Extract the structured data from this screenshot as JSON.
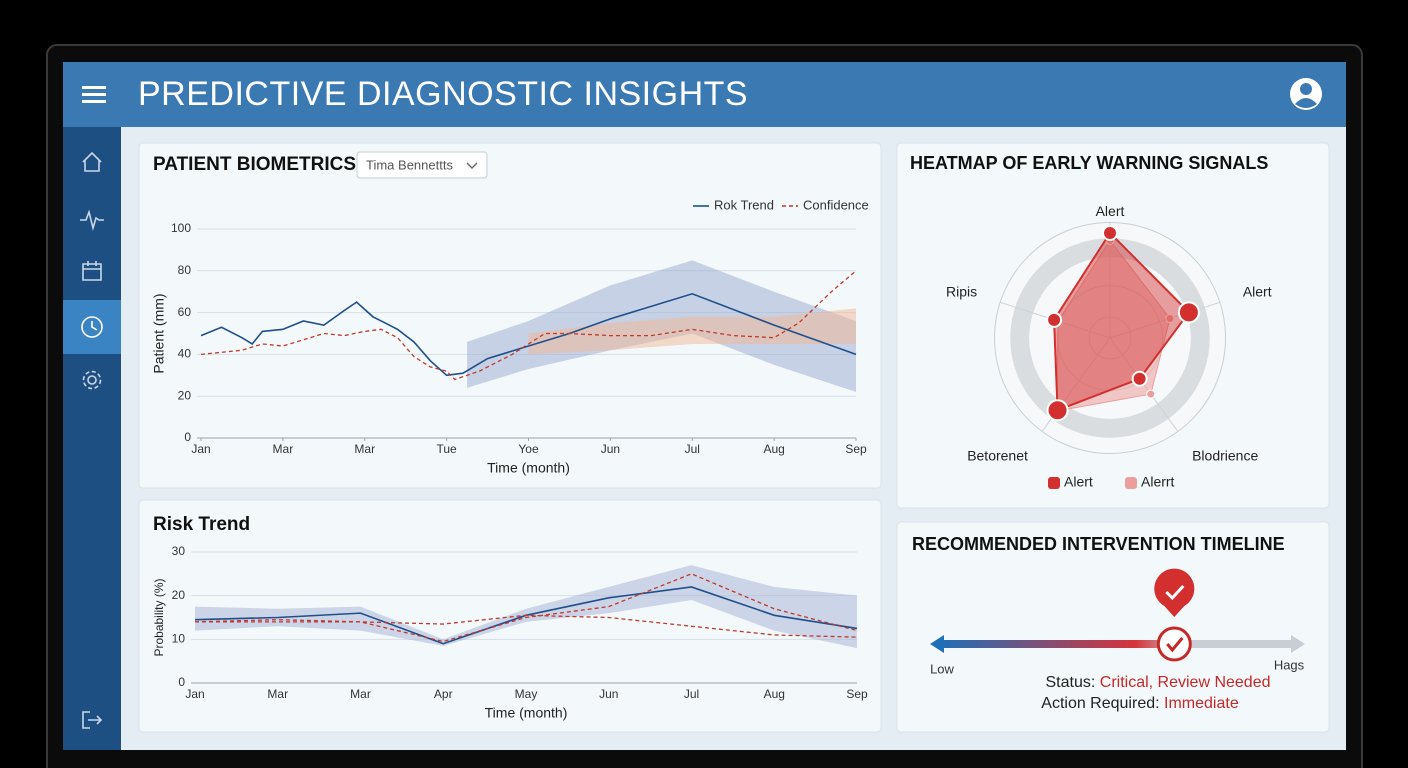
{
  "header": {
    "title": "PREDICTIVE DIAGNOSTIC INSIGHTS"
  },
  "patient_selector": "Tima Bennettts",
  "chart_data": [
    {
      "type": "line",
      "title": "PATIENT BIOMETRICS",
      "xlabel": "Time (month)",
      "ylabel": "Patient (mm)",
      "xlim": [
        0,
        8
      ],
      "xticks": [
        {
          "value": 0,
          "label": "Jan"
        },
        {
          "value": 1,
          "label": "Mar"
        },
        {
          "value": 2,
          "label": "Mar"
        },
        {
          "value": 3,
          "label": "Tue"
        },
        {
          "value": 4,
          "label": "Yoe"
        },
        {
          "value": 5,
          "label": "Jun"
        },
        {
          "value": 6,
          "label": "Jul"
        },
        {
          "value": 7,
          "label": "Aug"
        },
        {
          "value": 8,
          "label": "Sep"
        }
      ],
      "ylim": [
        0,
        100
      ],
      "yticks": [
        0,
        20,
        40,
        60,
        80,
        100
      ],
      "grid": true,
      "legend": "top-right",
      "series": [
        {
          "name": "Rok Trend",
          "color": "#1f4f8a",
          "style": "solid",
          "x": [
            0,
            0.25,
            0.5,
            0.625,
            0.75,
            1,
            1.25,
            1.5,
            1.75,
            1.9,
            2.1,
            2.4,
            2.6,
            2.8,
            3.0,
            3.2,
            3.5,
            4,
            4.5,
            5,
            6,
            7,
            8
          ],
          "values": [
            49,
            53,
            48,
            45,
            51,
            52,
            56,
            54,
            61,
            65,
            58,
            52,
            46,
            37,
            30,
            31,
            38,
            44,
            50,
            57,
            69,
            54,
            40
          ]
        },
        {
          "name": "Confidence",
          "color": "#c0392b",
          "style": "dashed",
          "x": [
            0,
            0.5,
            0.75,
            1,
            1.5,
            1.75,
            2,
            2.2,
            2.4,
            2.6,
            2.8,
            3.0,
            3.1,
            3.4,
            3.8,
            4.2,
            4.5,
            5,
            5.5,
            6,
            6.5,
            7,
            7.3,
            7.7,
            8
          ],
          "values": [
            40,
            42,
            45,
            44,
            50,
            49,
            51,
            52,
            48,
            39,
            34,
            32,
            28,
            32,
            40,
            50,
            50,
            49,
            49,
            52,
            49,
            48,
            55,
            70,
            80
          ]
        }
      ],
      "bands": [
        {
          "color": "#9aa9d0",
          "x": [
            3.25,
            4,
            5,
            6,
            7,
            8
          ],
          "lower": [
            24,
            33,
            42,
            50,
            35,
            22
          ],
          "upper": [
            46,
            56,
            73,
            85,
            70,
            56
          ]
        },
        {
          "color": "#f2b896",
          "x": [
            4,
            5,
            6,
            7,
            8
          ],
          "lower": [
            40,
            42,
            45,
            45,
            45
          ],
          "upper": [
            50,
            55,
            58,
            58,
            62
          ]
        }
      ]
    },
    {
      "type": "line",
      "title": "Risk Trend",
      "xlabel": "Time (month)",
      "ylabel": "Probability (%)",
      "categories": [
        "Jan",
        "Mar",
        "Mar",
        "Apr",
        "May",
        "Jun",
        "Jul",
        "Aug",
        "Sep"
      ],
      "ylim": [
        0,
        30
      ],
      "yticks": [
        0,
        10,
        20,
        30
      ],
      "grid": true,
      "series": [
        {
          "color": "#1f4f8a",
          "style": "solid",
          "values": [
            14.5,
            15,
            16,
            9,
            15.5,
            19.5,
            22,
            15.5,
            12.5
          ]
        },
        {
          "color": "#c0392b",
          "style": "dashed",
          "values": [
            14,
            14.5,
            14,
            9.5,
            15,
            17.5,
            25,
            17,
            12
          ]
        },
        {
          "color": "#c0392b",
          "style": "dashed",
          "values": [
            14,
            14,
            14,
            13.5,
            15.5,
            15,
            13,
            11,
            10.5
          ]
        }
      ],
      "bands": [
        {
          "color": "#a6b2d6",
          "lower": [
            12,
            13,
            12,
            8.5,
            14,
            16,
            19,
            12,
            8
          ],
          "upper": [
            17.5,
            17,
            17.5,
            10,
            17,
            22,
            27,
            22,
            20
          ]
        }
      ]
    },
    {
      "type": "radar",
      "title": "HEATMAP OF EARLY WARNING SIGNALS",
      "axes": [
        "Alert",
        "Alert",
        "Blodrience",
        "Betorenet",
        "Ripis"
      ],
      "rlim": [
        0,
        100
      ],
      "legend": "bottom",
      "series": [
        {
          "name": "Alert",
          "color": "#d32f2f",
          "values": [
            100,
            79,
            48,
            85,
            56
          ]
        },
        {
          "name": "Alerrt",
          "color": "#eb9f9a",
          "values": [
            93,
            60,
            66,
            86,
            52
          ]
        }
      ]
    }
  ],
  "timeline": {
    "title": "RECOMMENDED INTERVENTION TIMELINE",
    "low_label": "Low",
    "high_label": "Hags",
    "range": [
      0,
      100
    ],
    "value": 66,
    "status_label": "Status:",
    "status": "Critical, Review Needed",
    "action_label": "Action Required:",
    "action": "Immediate"
  }
}
